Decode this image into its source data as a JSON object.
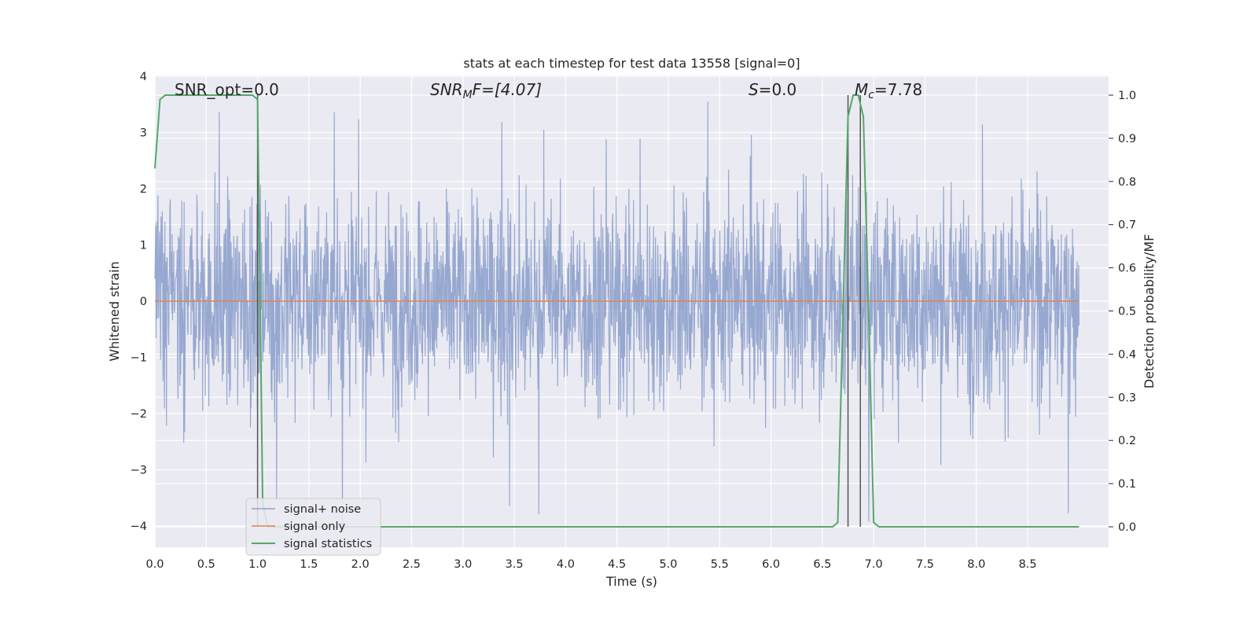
{
  "chart_data": {
    "type": "line",
    "title": "stats at each timestep for test data 13558 [signal=0]",
    "xlabel": "Time (s)",
    "ylabel": "Whitened strain",
    "y2label": "Detection probability/MF",
    "xlim": [
      0.0,
      9.0
    ],
    "ylim": [
      -4.35,
      4.0
    ],
    "y2lim": [
      -0.05,
      1.05
    ],
    "grid": true,
    "legend_position": "lower-left",
    "x_ticks": [
      "0.0",
      "0.5",
      "1.0",
      "1.5",
      "2.0",
      "2.5",
      "3.0",
      "3.5",
      "4.0",
      "4.5",
      "5.0",
      "5.5",
      "6.0",
      "6.5",
      "7.0",
      "7.5",
      "8.0",
      "8.5"
    ],
    "y_ticks": [
      "4",
      "3",
      "2",
      "1",
      "0",
      "−1",
      "−2",
      "−3",
      "−4"
    ],
    "y2_ticks": [
      "1.0",
      "0.9",
      "0.8",
      "0.7",
      "0.6",
      "0.5",
      "0.4",
      "0.3",
      "0.2",
      "0.1",
      "0.0"
    ],
    "annotations": {
      "snr_opt": "SNR_opt=0.0",
      "snr_mf_main": "SNR",
      "snr_mf_sub": "M",
      "snr_mf_rest": "F=[4.07]",
      "s_main": "S",
      "s_rest": "=0.0",
      "mc_main": "M",
      "mc_sub": "c",
      "mc_rest": "=7.78"
    },
    "series": [
      {
        "name": "signal+ noise",
        "color": "#8ea1cc",
        "axis": "left",
        "envelope": {
          "typical_high": 1.8,
          "typical_low": -1.7,
          "max": 3.6,
          "min": -4.0
        }
      },
      {
        "name": "signal only",
        "color": "#dd8452",
        "axis": "left",
        "x": [
          0.0,
          9.0
        ],
        "y": [
          0.0,
          0.0
        ]
      },
      {
        "name": "signal statistics",
        "color": "#55a868",
        "axis": "right",
        "x": [
          0.0,
          0.05,
          0.1,
          0.9,
          0.95,
          1.0,
          1.05,
          1.1,
          6.6,
          6.65,
          6.75,
          6.8,
          6.85,
          6.9,
          6.95,
          7.0,
          7.05,
          9.0
        ],
        "y": [
          0.83,
          0.99,
          1.0,
          1.0,
          1.0,
          0.99,
          0.05,
          0.0,
          0.0,
          0.01,
          0.95,
          1.0,
          1.0,
          0.95,
          0.5,
          0.01,
          0.0,
          0.0
        ]
      }
    ],
    "vertical_markers": [
      1.0,
      6.75,
      6.87
    ]
  }
}
